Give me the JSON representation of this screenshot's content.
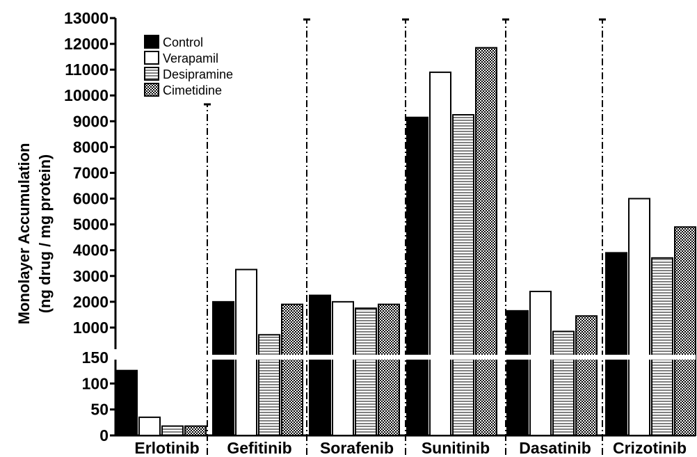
{
  "chart_data": {
    "type": "bar",
    "ylabel_lines": [
      "Monolayer Accumulation",
      "(ng drug / mg protein)"
    ],
    "categories": [
      "Erlotinib",
      "Gefitinib",
      "Sorafenib",
      "Sunitinib",
      "Dasatinib",
      "Crizotinib"
    ],
    "series": [
      {
        "name": "Control",
        "pattern": "solid-black",
        "values": [
          125,
          2000,
          2250,
          9150,
          1650,
          3900
        ]
      },
      {
        "name": "Verapamil",
        "pattern": "white",
        "values": [
          35,
          3250,
          2000,
          10900,
          2400,
          6000
        ]
      },
      {
        "name": "Desipramine",
        "pattern": "horizontal-lines",
        "values": [
          18,
          720,
          1750,
          9250,
          850,
          3700
        ]
      },
      {
        "name": "Cimetidine",
        "pattern": "checker",
        "values": [
          18,
          1900,
          1900,
          11850,
          1450,
          4900
        ]
      }
    ],
    "axis": {
      "broken": true,
      "lower_segment": {
        "ylim": [
          0,
          150
        ],
        "ticks": [
          0,
          50,
          100,
          150
        ]
      },
      "upper_segment": {
        "ylim": [
          0,
          13000
        ],
        "ticks": [
          1000,
          2000,
          3000,
          4000,
          5000,
          6000,
          7000,
          8000,
          9000,
          10000,
          11000,
          12000,
          13000
        ]
      }
    },
    "legend": {
      "position": "top-left"
    },
    "grid": false,
    "group_separators": "dash-dot vertical lines"
  }
}
